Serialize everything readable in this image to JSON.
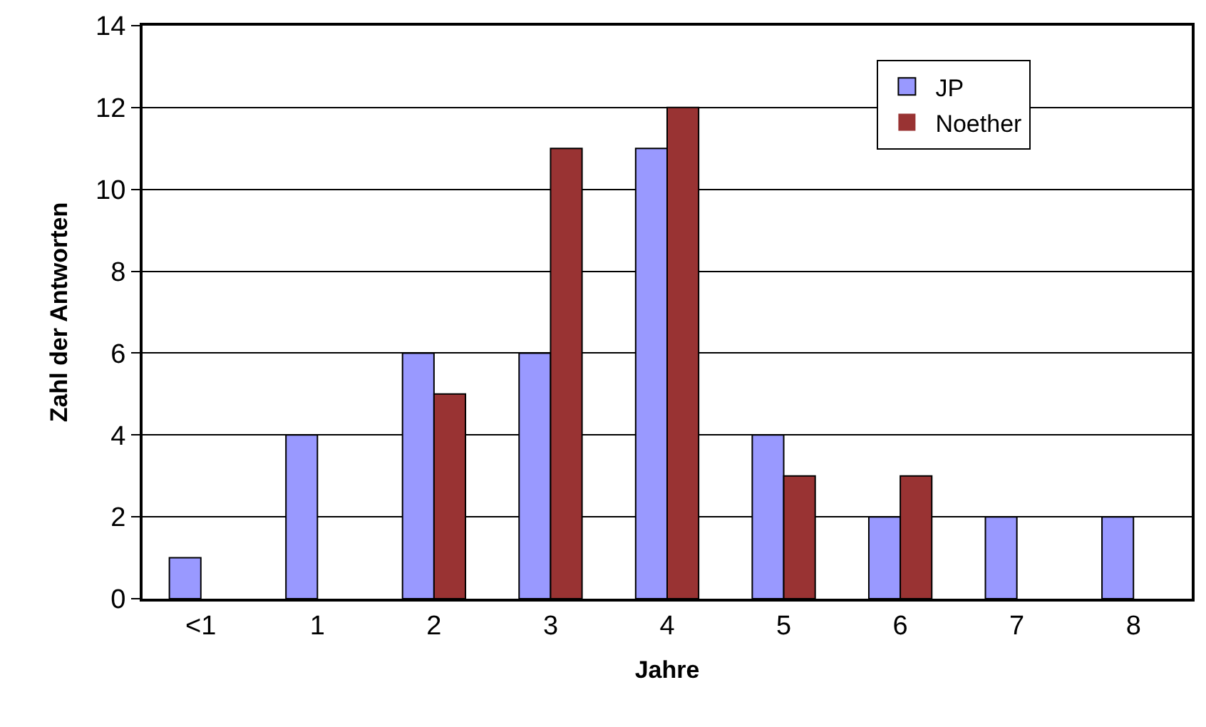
{
  "chart_data": {
    "type": "bar",
    "xlabel": "Jahre",
    "ylabel": "Zahl der Antworten",
    "categories": [
      "<1",
      "1",
      "2",
      "3",
      "4",
      "5",
      "6",
      "7",
      "8"
    ],
    "series": [
      {
        "name": "JP",
        "color": "#9999ff",
        "values": [
          1,
          4,
          6,
          6,
          11,
          4,
          2,
          2,
          2
        ]
      },
      {
        "name": "Noether",
        "color": "#993333",
        "values": [
          0,
          0,
          5,
          11,
          12,
          3,
          3,
          0,
          0
        ]
      }
    ],
    "ylim": [
      0,
      14
    ],
    "yticks": [
      0,
      2,
      4,
      6,
      8,
      10,
      12,
      14
    ],
    "grid": "y",
    "legend": "top right"
  }
}
